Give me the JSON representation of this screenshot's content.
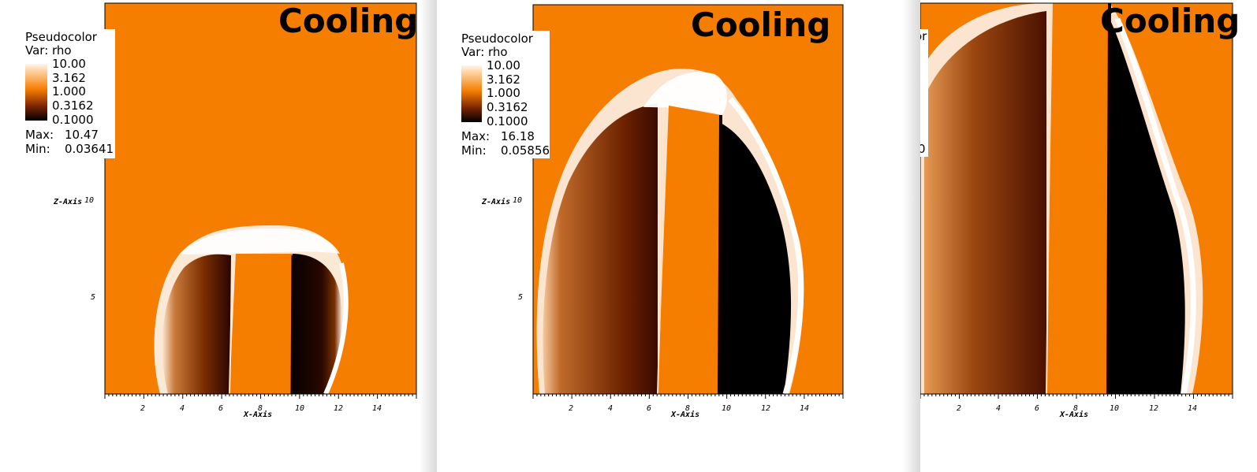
{
  "colors": {
    "background_orange": "#f57d00",
    "rim_white": "#fff0e0",
    "void_black": "#000000",
    "gap_shadow": "#d9d9d9"
  },
  "chart_data": [
    {
      "type": "heatmap",
      "title": "Cooling",
      "legend": {
        "plot_type": "Pseudocolor",
        "var": "Var: rho",
        "ticks": [
          "10.00",
          "3.162",
          "1.000",
          "0.3162",
          "0.1000"
        ],
        "max_label": "Max:",
        "max": "10.47",
        "min_label": "Min:",
        "min": "0.03641",
        "placement": "top-left"
      },
      "xlabel": "X-Axis",
      "ylabel": "Z-Axis",
      "xticks": [
        "2",
        "4",
        "6",
        "8",
        "10",
        "12",
        "14"
      ],
      "yticks": [
        "10",
        "5"
      ],
      "xlim": [
        0,
        16
      ],
      "ylim": [
        0,
        20.2
      ],
      "rho_range": [
        0.03641,
        10.47
      ],
      "cavity": {
        "x_left": 2.7,
        "x_right": 12.4,
        "z_top": 8.8,
        "jet_x": [
          6.4,
          9.6
        ]
      },
      "colormap": "orange-hot",
      "log_scale": true
    },
    {
      "type": "heatmap",
      "title": "Cooling",
      "legend": {
        "plot_type": "Pseudocolor",
        "var": "Var: rho",
        "ticks": [
          "10.00",
          "3.162",
          "1.000",
          "0.3162",
          "0.1000"
        ],
        "max_label": "Max:",
        "max": "16.18",
        "min_label": "Min:",
        "min": "0.05856",
        "placement": "top-left"
      },
      "xlabel": "X-Axis",
      "ylabel": "Z-Axis",
      "xticks": [
        "2",
        "4",
        "6",
        "8",
        "10",
        "12",
        "14"
      ],
      "yticks": [
        "10",
        "5"
      ],
      "xlim": [
        0,
        16
      ],
      "ylim": [
        0,
        20.2
      ],
      "rho_range": [
        0.05856,
        16.18
      ],
      "cavity": {
        "x_left": 0.3,
        "x_right": 13.9,
        "z_top": 16.8,
        "jet_x": [
          6.4,
          9.6
        ]
      },
      "colormap": "orange-hot",
      "log_scale": true
    },
    {
      "type": "heatmap",
      "title": "Cooling",
      "legend": {
        "plot_type": "",
        "var": "",
        "ticks": [],
        "max_label": "",
        "max": "",
        "min_label": "",
        "min": "0",
        "placement": "top-left",
        "partial_text": "or"
      },
      "xlabel": "X-Axis",
      "ylabel": "",
      "xticks": [
        "2",
        "4",
        "6",
        "8",
        "10",
        "12",
        "14"
      ],
      "yticks": [],
      "xlim": [
        0,
        16
      ],
      "ylim": [
        0,
        20.2
      ],
      "cavity": {
        "x_left": 0,
        "x_right": 14.8,
        "z_top": 20.2,
        "jet_x": [
          6.4,
          9.6
        ]
      },
      "colormap": "orange-hot",
      "log_scale": true
    }
  ]
}
